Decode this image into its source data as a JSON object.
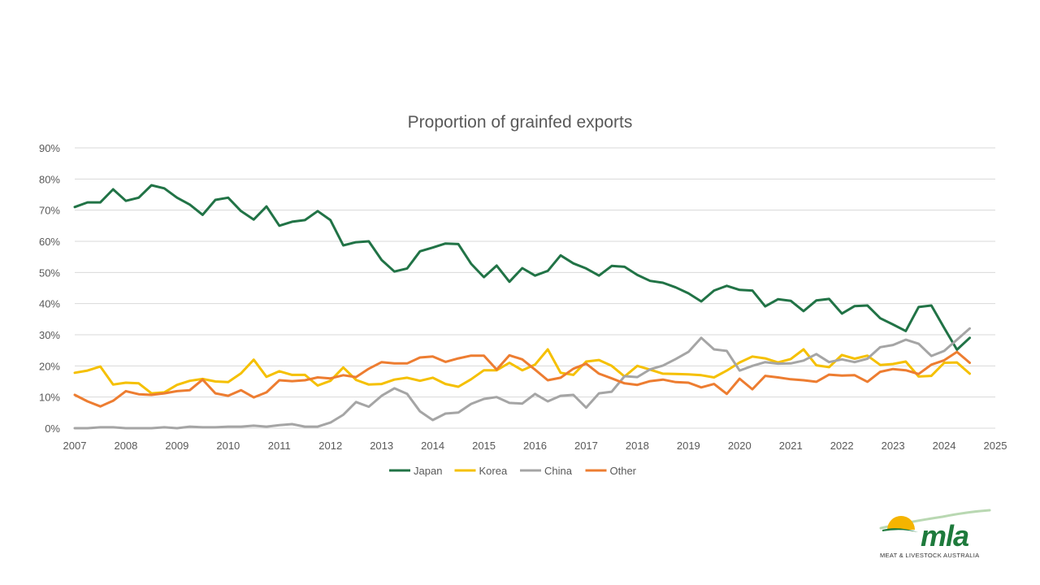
{
  "chart_data": {
    "type": "line",
    "title": "Proportion of grainfed exports",
    "xlabel": "",
    "ylabel": "",
    "xlim": [
      2007,
      2025
    ],
    "ylim": [
      0,
      90
    ],
    "x_ticks": [
      "2007",
      "2008",
      "2009",
      "2010",
      "2011",
      "2012",
      "2013",
      "2014",
      "2015",
      "2016",
      "2017",
      "2018",
      "2019",
      "2020",
      "2021",
      "2022",
      "2023",
      "2024",
      "2025"
    ],
    "y_ticks": [
      "0%",
      "10%",
      "20%",
      "30%",
      "40%",
      "50%",
      "60%",
      "70%",
      "80%",
      "90%"
    ],
    "grid": "horizontal",
    "legend_position": "bottom",
    "x": [
      2007,
      2007.25,
      2007.5,
      2007.75,
      2008,
      2008.25,
      2008.5,
      2008.75,
      2009,
      2009.25,
      2009.5,
      2009.75,
      2010,
      2010.25,
      2010.5,
      2010.75,
      2011,
      2011.25,
      2011.5,
      2011.75,
      2012,
      2012.25,
      2012.5,
      2012.75,
      2013,
      2013.25,
      2013.5,
      2013.75,
      2014,
      2014.25,
      2014.5,
      2014.75,
      2015,
      2015.25,
      2015.5,
      2015.75,
      2016,
      2016.25,
      2016.5,
      2016.75,
      2017,
      2017.25,
      2017.5,
      2017.75,
      2018,
      2018.25,
      2018.5,
      2018.75,
      2019,
      2019.25,
      2019.5,
      2019.75,
      2020,
      2020.25,
      2020.5,
      2020.75,
      2021,
      2021.25,
      2021.5,
      2021.75,
      2022,
      2022.25,
      2022.5,
      2022.75,
      2023,
      2023.25,
      2023.5,
      2023.75,
      2024,
      2024.25,
      2024.5
    ],
    "series": [
      {
        "name": "Japan",
        "color": "#217346",
        "values": [
          71,
          72.5,
          72.5,
          76.7,
          73,
          74,
          78,
          77,
          74,
          71.8,
          68.5,
          73.3,
          74,
          69.7,
          67,
          71.2,
          65,
          66.3,
          66.8,
          69.7,
          66.8,
          58.7,
          59.7,
          60,
          54,
          50.3,
          51.3,
          56.8,
          58,
          59.3,
          59.1,
          52.8,
          48.5,
          52.2,
          47,
          51.4,
          49,
          50.5,
          55.5,
          52.9,
          51.3,
          49,
          52.1,
          51.8,
          49.2,
          47.3,
          46.7,
          45.2,
          43.3,
          40.7,
          44.2,
          45.7,
          44.4,
          44.2,
          39.1,
          41.4,
          40.9,
          37.6,
          41,
          41.5,
          36.8,
          39.2,
          39.4,
          35.3,
          33.3,
          31.2,
          38.9,
          39.4,
          32.2,
          25.2,
          29
        ]
      },
      {
        "name": "Korea",
        "color": "#F5C000",
        "values": [
          17.8,
          18.5,
          19.8,
          14,
          14.6,
          14.4,
          11.2,
          11.5,
          13.9,
          15.2,
          15.8,
          15,
          14.8,
          17.6,
          22,
          16.5,
          18.3,
          17.1,
          17.1,
          13.7,
          15.2,
          19.5,
          15.5,
          14,
          14.2,
          15.6,
          16.2,
          15.2,
          16.2,
          14.2,
          13.3,
          15.7,
          18.6,
          18.6,
          21,
          18.6,
          20.4,
          25.3,
          17.8,
          17.1,
          21.4,
          21.9,
          20,
          16.6,
          20,
          18.8,
          17.5,
          17.4,
          17.3,
          17,
          16.3,
          18.5,
          21.1,
          23,
          22.4,
          21.1,
          22.2,
          25.3,
          20.2,
          19.6,
          23.5,
          22.3,
          23.3,
          20.3,
          20.6,
          21.4,
          16.6,
          16.8,
          21,
          21.1,
          17.5
        ]
      },
      {
        "name": "China",
        "color": "#A5A5A5",
        "values": [
          0,
          0,
          0.3,
          0.3,
          0,
          0,
          0,
          0.3,
          0,
          0.5,
          0.3,
          0.3,
          0.5,
          0.5,
          0.8,
          0.5,
          1,
          1.3,
          0.5,
          0.5,
          1.8,
          4.3,
          8.4,
          6.9,
          10.4,
          12.8,
          11,
          5.4,
          2.6,
          4.7,
          5,
          7.8,
          9.4,
          10,
          8.1,
          7.9,
          11,
          8.6,
          10.4,
          10.7,
          6.6,
          11.2,
          11.7,
          16.7,
          16.4,
          18.9,
          20.1,
          22.2,
          24.5,
          29,
          25.3,
          24.8,
          18.5,
          20,
          21.2,
          20.7,
          20.8,
          21.7,
          23.8,
          21.2,
          22.1,
          21.2,
          22.3,
          26,
          26.7,
          28.4,
          27.1,
          23.2,
          24.8,
          28.4,
          32
        ]
      },
      {
        "name": "Other",
        "color": "#ED7D31",
        "values": [
          10.7,
          8.6,
          7,
          8.8,
          11.9,
          10.9,
          10.7,
          11.2,
          11.9,
          12.2,
          15.6,
          11.2,
          10.4,
          12.2,
          9.9,
          11.5,
          15.4,
          15.1,
          15.4,
          16.3,
          16,
          17,
          16.4,
          19.1,
          21.2,
          20.8,
          20.8,
          22.7,
          23,
          21.3,
          22.4,
          23.3,
          23.3,
          18.8,
          23.4,
          22.1,
          18.8,
          15.4,
          16.2,
          19.1,
          20.7,
          17.5,
          16,
          14.4,
          13.9,
          15.1,
          15.6,
          14.8,
          14.6,
          13.1,
          14.2,
          11,
          15.9,
          12.5,
          16.8,
          16.3,
          15.7,
          15.4,
          14.9,
          17.2,
          16.9,
          17,
          14.9,
          18.1,
          19,
          18.6,
          17.4,
          20.4,
          21.8,
          24.5,
          21
        ]
      }
    ]
  },
  "logo": {
    "text": "mla",
    "tagline": "MEAT & LIVESTOCK AUSTRALIA"
  }
}
